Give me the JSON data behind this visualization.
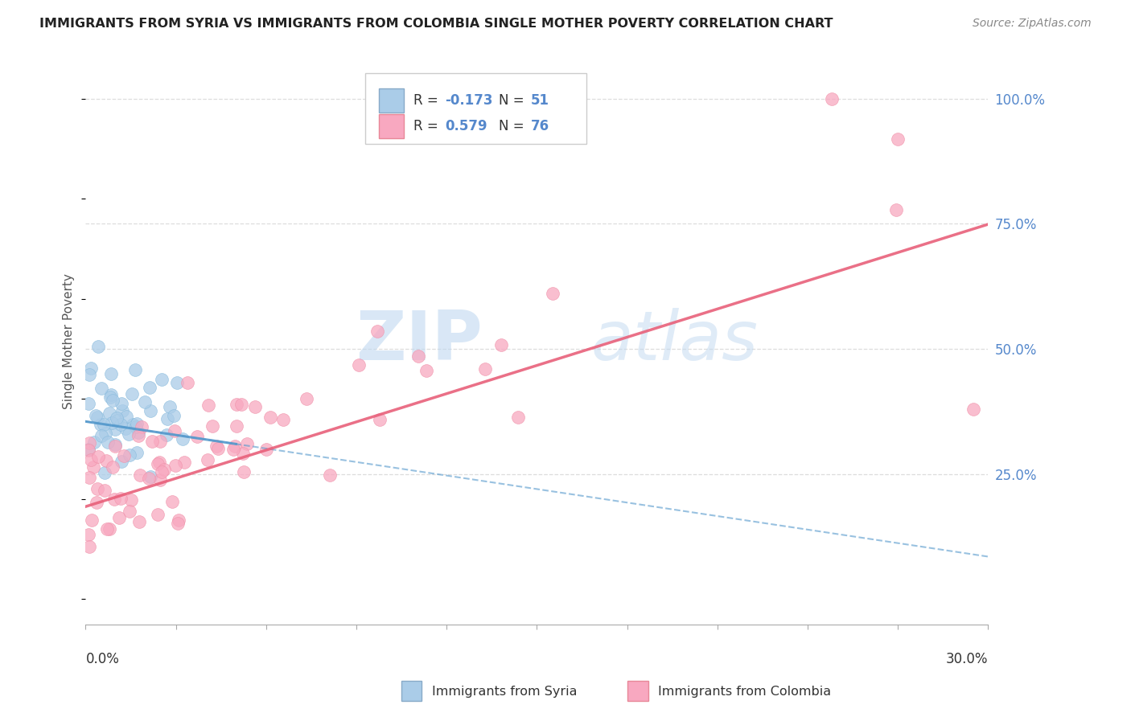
{
  "title": "IMMIGRANTS FROM SYRIA VS IMMIGRANTS FROM COLOMBIA SINGLE MOTHER POVERTY CORRELATION CHART",
  "source": "Source: ZipAtlas.com",
  "ylabel": "Single Mother Poverty",
  "right_yticks": [
    "25.0%",
    "50.0%",
    "75.0%",
    "100.0%"
  ],
  "right_ytick_vals": [
    0.25,
    0.5,
    0.75,
    1.0
  ],
  "legend1_r": "-0.173",
  "legend1_n": "51",
  "legend2_r": "0.579",
  "legend2_n": "76",
  "xlim": [
    0.0,
    0.3
  ],
  "ylim": [
    -0.05,
    1.08
  ],
  "syria_color": "#aacce8",
  "colombia_color": "#f8a8c0",
  "syria_line_color": "#5599cc",
  "colombia_line_color": "#e8607a",
  "watermark_zip": "ZIP",
  "watermark_atlas": "atlas",
  "bg_color": "#ffffff",
  "grid_color": "#dddddd",
  "right_label_color": "#5588cc",
  "title_color": "#222222",
  "source_color": "#888888"
}
